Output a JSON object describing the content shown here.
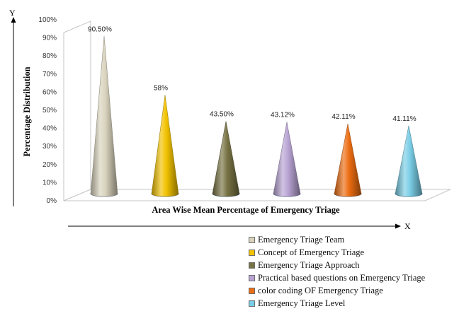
{
  "chart_data": {
    "type": "bar",
    "style": "3d-cone",
    "xlabel": "Area Wise Mean Percentage of Emergency Triage",
    "ylabel": "Percentage Distribution",
    "y_axis_letter": "Y",
    "x_axis_letter": "X",
    "ylim": [
      0,
      100
    ],
    "yticks": [
      "0%",
      "10%",
      "20%",
      "30%",
      "40%",
      "50%",
      "60%",
      "70%",
      "80%",
      "90%",
      "100%"
    ],
    "legend_position": "bottom-right",
    "grid": false,
    "series": [
      {
        "name": "Emergency Triage Team",
        "value": 90.5,
        "label": "90.50%",
        "color": "#d9d3bd"
      },
      {
        "name": "Concept of Emergency Triage",
        "value": 58,
        "label": "58%",
        "color": "#f2c200"
      },
      {
        "name": "Emergency Triage Approach",
        "value": 43.5,
        "label": "43.50%",
        "color": "#777344"
      },
      {
        "name": "Practical based questions on Emergency Triage",
        "value": 43.12,
        "label": "43.12%",
        "color": "#b8a3d3"
      },
      {
        "name": "color coding OF Emergency Triage",
        "value": 42.11,
        "label": "42.11%",
        "color": "#ec6d12"
      },
      {
        "name": "Emergency Triage Level",
        "value": 41.11,
        "label": "41.11%",
        "color": "#79cde6"
      }
    ]
  }
}
